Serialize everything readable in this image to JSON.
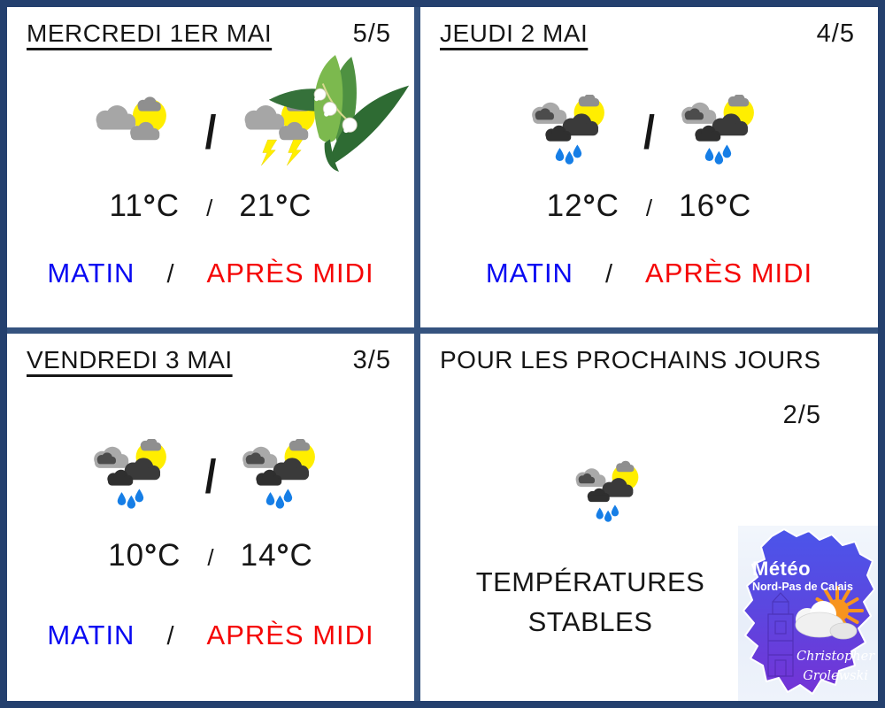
{
  "labels": {
    "separator": "/",
    "degree": "°",
    "unit": "C",
    "morning": "MATIN",
    "afternoon": "APRÈS MIDI"
  },
  "colors": {
    "frame": "#24406e",
    "grid_bars": "#35537f",
    "morning_text": "#0909f2",
    "afternoon_text": "#f50505",
    "sun": "#ffee00",
    "rain_drop": "#167ee6",
    "logo_map_top": "#4b55ea",
    "logo_map_bottom": "#7433d6",
    "logo_sun": "#f7941e"
  },
  "quadrants": [
    {
      "title": "MERCREDI 1ER MAI",
      "rating": "5/5",
      "morning_icon": "sun-gray-clouds",
      "afternoon_icon": "thunderstorm-sun",
      "temps": {
        "morning": "11",
        "afternoon": "21"
      },
      "decoration": "lily-of-the-valley"
    },
    {
      "title": "JEUDI 2 MAI",
      "rating": "4/5",
      "morning_icon": "rain-sun",
      "afternoon_icon": "rain-sun",
      "temps": {
        "morning": "12",
        "afternoon": "16"
      }
    },
    {
      "title": "VENDREDI 3 MAI",
      "rating": "3/5",
      "morning_icon": "rain-sun",
      "afternoon_icon": "rain-sun",
      "temps": {
        "morning": "10",
        "afternoon": "14"
      }
    }
  ],
  "outlook": {
    "title": "POUR LES PROCHAINS JOURS",
    "rating": "2/5",
    "icon": "rain-sun",
    "message_line1": "TEMPÉRATURES",
    "message_line2": "STABLES",
    "logo": {
      "brand": "Météo",
      "region": "Nord-Pas de Calais",
      "signature_line1": "Christopher",
      "signature_line2": "Grolewski"
    }
  }
}
